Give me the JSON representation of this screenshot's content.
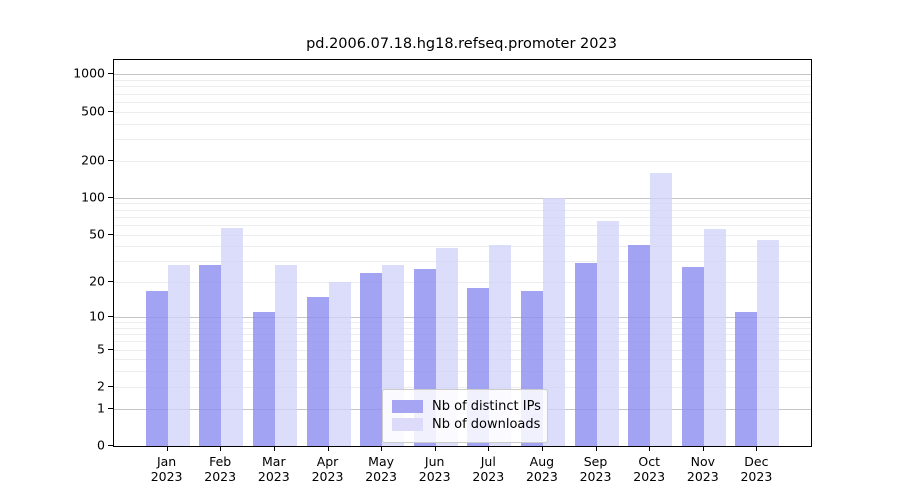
{
  "title": "pd.2006.07.18.hg18.refseq.promoter 2023",
  "colors": {
    "ips_bar": "#a5a5f3",
    "downloads_bar": "#dcdcfa",
    "grid_major": "#c6c6c6",
    "grid_minor": "#ededed",
    "spine": "#000000",
    "background": "#ffffff"
  },
  "legend": {
    "items": [
      {
        "label": "Nb of distinct IPs",
        "swatch": "ips-swatch"
      },
      {
        "label": "Nb of downloads",
        "swatch": "downloads-swatch"
      }
    ],
    "position": "lower center"
  },
  "chart_data": {
    "type": "bar",
    "title": "pd.2006.07.18.hg18.refseq.promoter 2023",
    "xlabel": "",
    "ylabel": "",
    "yscale": "log1p",
    "ylim": [
      0,
      1300
    ],
    "grid": "both",
    "categories": [
      "Jan",
      "Feb",
      "Mar",
      "Apr",
      "May",
      "Jun",
      "Jul",
      "Aug",
      "Sep",
      "Oct",
      "Nov",
      "Dec"
    ],
    "x_sublabel": "2023",
    "yticks": [
      0,
      1,
      2,
      5,
      10,
      20,
      50,
      100,
      200,
      500,
      1000
    ],
    "ytick_labels": [
      "0",
      "1",
      "2",
      "5",
      "10",
      "20",
      "50",
      "100",
      "200",
      "500",
      "1000"
    ],
    "series": [
      {
        "name": "Nb of distinct IPs",
        "values": [
          17,
          28,
          11,
          15,
          24,
          26,
          18,
          17,
          29,
          41,
          27,
          11
        ]
      },
      {
        "name": "Nb of downloads",
        "values": [
          28,
          57,
          28,
          20,
          28,
          39,
          41,
          100,
          65,
          160,
          55,
          45
        ]
      }
    ]
  }
}
